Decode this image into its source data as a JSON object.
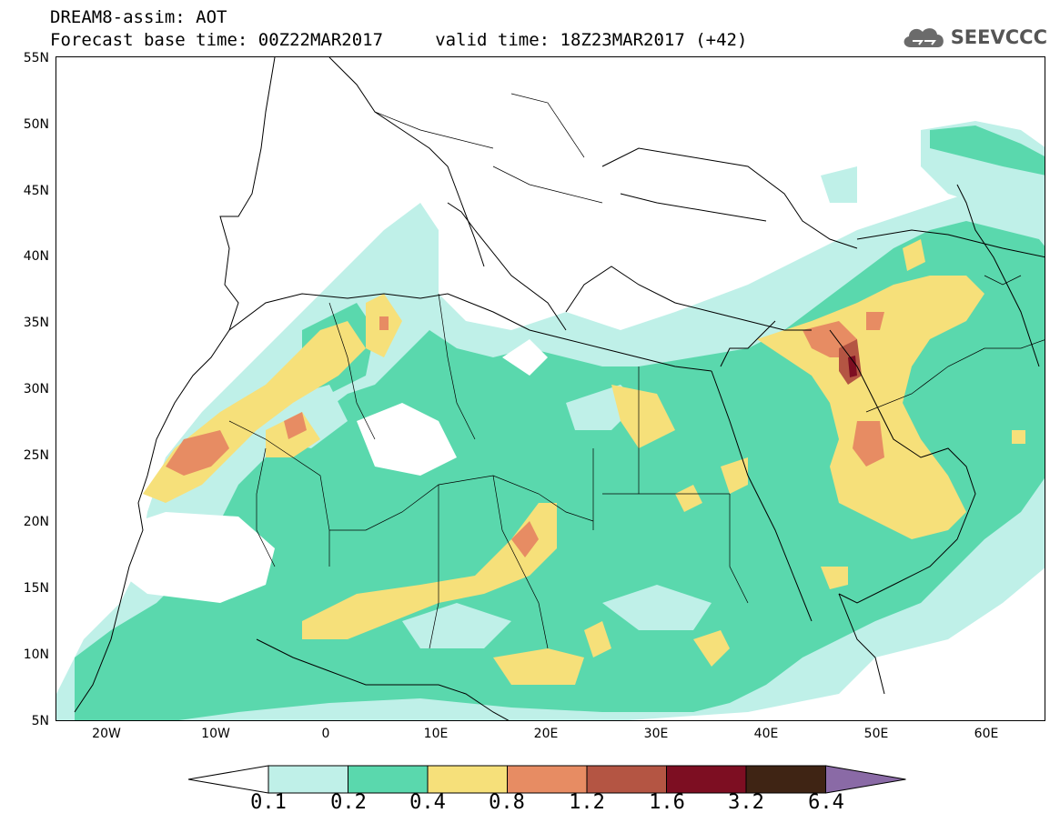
{
  "title": {
    "line1": "DREAM8-assim: AOT",
    "line2": "Forecast base time: 00Z22MAR2017     valid time: 18Z23MAR2017 (+42)"
  },
  "logo": {
    "text": "SEEVCCC",
    "icon": "cloud-icon"
  },
  "map": {
    "lat_labels": [
      "55N",
      "50N",
      "45N",
      "40N",
      "35N",
      "30N",
      "25N",
      "20N",
      "15N",
      "10N",
      "5N"
    ],
    "lon_labels": [
      "20W",
      "10W",
      "0",
      "10E",
      "20E",
      "30E",
      "40E",
      "50E",
      "60E"
    ],
    "lon_range": [
      -25,
      65
    ],
    "lat_range": [
      5,
      55
    ],
    "variable": "AOT"
  },
  "colorbar": {
    "labels": [
      "0.1",
      "0.2",
      "0.4",
      "0.8",
      "1.2",
      "1.6",
      "3.2",
      "6.4"
    ],
    "colors": [
      "#ffffff",
      "#bff0e8",
      "#5ad8ad",
      "#f6e07a",
      "#e78c63",
      "#b45543",
      "#7d0e22",
      "#3f2414",
      "#8a6aa6"
    ],
    "extend": "both"
  }
}
